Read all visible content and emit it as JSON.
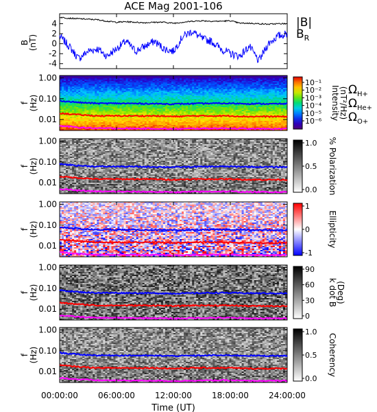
{
  "title": "ACE Mag 2001-106",
  "colors": {
    "blue": "#0000ff",
    "red": "#ff0000",
    "magenta": "#ff00ff",
    "black": "#000000"
  },
  "chart_data": {
    "type": "line",
    "title": "ACE Mag 2001-106",
    "xlabel": "Time (UT)",
    "x_tick_labels": [
      "00:00:00",
      "06:00:00",
      "12:00:00",
      "18:00:00",
      "24:00:00"
    ],
    "x_ticks_hours": [
      0,
      6,
      12,
      18,
      24
    ],
    "xlim_hours": [
      0,
      24
    ],
    "top_panel": {
      "ylabel": "B",
      "yunit": "(nT)",
      "ylim": [
        -5,
        6
      ],
      "yticks": [
        "4",
        "2",
        "0",
        "-2",
        "-4"
      ],
      "ytick_values": [
        4,
        2,
        0,
        -2,
        -4
      ],
      "series": [
        {
          "name": "|B|",
          "sub": "",
          "color": "#000000",
          "x_hours": [
            0,
            1,
            2,
            3,
            4,
            5,
            6,
            7,
            8,
            9,
            10,
            11,
            12,
            13,
            14,
            15,
            16,
            17,
            18,
            19,
            20,
            21,
            22,
            23,
            24
          ],
          "y": [
            5.3,
            5.1,
            5.0,
            4.9,
            4.8,
            4.5,
            4.3,
            4.4,
            4.3,
            4.2,
            4.3,
            4.3,
            4.1,
            4.3,
            4.5,
            4.6,
            4.5,
            4.5,
            4.6,
            4.1,
            4.1,
            4.0,
            3.9,
            4.0,
            4.0
          ]
        },
        {
          "name": "B",
          "sub": "R",
          "color": "#0000ff",
          "x_hours": [
            0,
            1,
            2,
            3,
            4,
            5,
            6,
            7,
            8,
            9,
            10,
            11,
            12,
            13,
            14,
            15,
            16,
            17,
            18,
            19,
            20,
            21,
            22,
            23,
            24
          ],
          "y": [
            1.5,
            -0.5,
            -3.0,
            -1.5,
            -1.0,
            -2.5,
            -1.0,
            0.5,
            -1.5,
            -0.5,
            0.5,
            -1.0,
            -1.5,
            1.5,
            2.5,
            1.0,
            0.5,
            -1.0,
            -2.0,
            -2.5,
            -0.5,
            -3.5,
            0.0,
            1.5,
            2.0
          ]
        }
      ]
    },
    "spectral_panels": [
      {
        "name": "intensity",
        "ylabel": "f",
        "yunit": "(Hz)",
        "colormap": "rainbow",
        "colorbar_label": "Intensity",
        "colorbar_unit": "(nT²/Hz)",
        "colorbar_ticks": [
          "10⁻¹",
          "10⁻²",
          "10⁻³",
          "10⁻⁴",
          "10⁻⁵",
          "10⁻⁶"
        ],
        "colorbar_range": [
          1e-07,
          1
        ]
      },
      {
        "name": "polarization",
        "ylabel": "f",
        "yunit": "(Hz)",
        "colormap": "gray",
        "colorbar_label": "% Polarization",
        "colorbar_unit": "",
        "colorbar_ticks": [
          "1.0",
          "0.5",
          "0.0"
        ],
        "colorbar_range": [
          0,
          1
        ]
      },
      {
        "name": "ellipticity",
        "ylabel": "f",
        "yunit": "(Hz)",
        "colormap": "bwr",
        "colorbar_label": "Ellipticity",
        "colorbar_unit": "",
        "colorbar_ticks": [
          "1",
          "0",
          "-1"
        ],
        "colorbar_range": [
          -1,
          1
        ]
      },
      {
        "name": "kdotb",
        "ylabel": "f",
        "yunit": "(Hz)",
        "colormap": "gray",
        "colorbar_label": "k dot B",
        "colorbar_unit": "(Deg)",
        "colorbar_ticks": [
          "90",
          "60",
          "30",
          "0"
        ],
        "colorbar_range": [
          0,
          90
        ]
      },
      {
        "name": "coherency",
        "ylabel": "f",
        "yunit": "(Hz)",
        "colormap": "gray",
        "colorbar_label": "Coherency",
        "colorbar_unit": "",
        "colorbar_ticks": [
          "1.0",
          "0.5",
          "0.0"
        ],
        "colorbar_range": [
          0,
          1
        ]
      }
    ],
    "freq_ticks": [
      "1.00",
      "0.10",
      "0.01"
    ],
    "freq_tick_values": [
      1.0,
      0.1,
      0.01
    ],
    "freq_range": [
      0.003,
      1.3
    ],
    "gyrofrequency_lines": [
      {
        "label": "Ω",
        "sub": "H+",
        "color": "#0000ff",
        "x_hours": [
          0,
          2,
          4,
          6,
          8,
          10,
          12,
          14,
          16,
          18,
          20,
          22,
          24
        ],
        "f": [
          0.08,
          0.066,
          0.06,
          0.06,
          0.059,
          0.058,
          0.056,
          0.058,
          0.06,
          0.06,
          0.058,
          0.057,
          0.057
        ]
      },
      {
        "label": "Ω",
        "sub": "He+",
        "color": "#ff0000",
        "x_hours": [
          0,
          2,
          4,
          6,
          8,
          10,
          12,
          14,
          16,
          18,
          20,
          22,
          24
        ],
        "f": [
          0.02,
          0.017,
          0.015,
          0.015,
          0.015,
          0.015,
          0.014,
          0.015,
          0.015,
          0.015,
          0.014,
          0.014,
          0.014
        ]
      },
      {
        "label": "Ω",
        "sub": "O+",
        "color": "#ff00ff",
        "x_hours": [
          0,
          2,
          4,
          6,
          8,
          10,
          12,
          14,
          16,
          18,
          20,
          22,
          24
        ],
        "f": [
          0.005,
          0.0042,
          0.0038,
          0.0038,
          0.0037,
          0.0037,
          0.0035,
          0.0037,
          0.0038,
          0.0038,
          0.0036,
          0.0036,
          0.0036
        ]
      }
    ]
  }
}
